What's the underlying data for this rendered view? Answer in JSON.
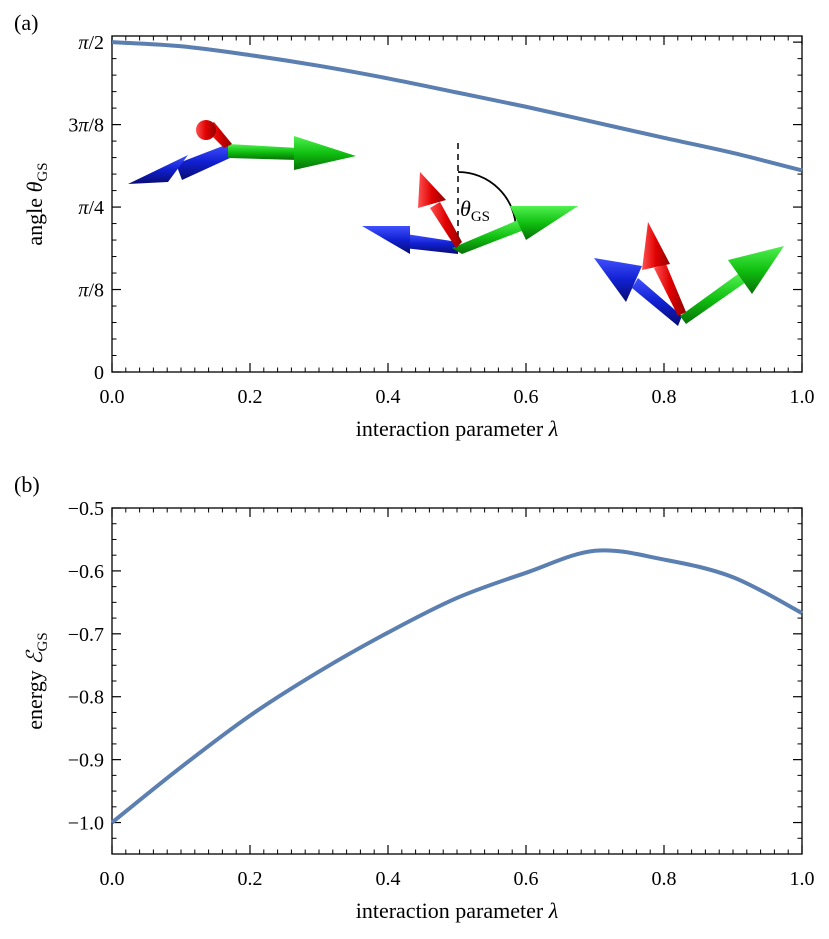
{
  "colors": {
    "curve": "#5b7fb0",
    "arrow_red": "#e01010",
    "arrow_green": "#10c010",
    "arrow_blue": "#1020d0"
  },
  "chart_data": [
    {
      "panel": "(a)",
      "type": "line",
      "xlabel": "interaction parameter λ",
      "ylabel": "angle θGS",
      "xlim": [
        0,
        1
      ],
      "ylim": [
        0,
        1.6
      ],
      "xticks": [
        0,
        0.2,
        0.4,
        0.6,
        0.8,
        1.0
      ],
      "xtick_labels": [
        "0.0",
        "0.2",
        "0.4",
        "0.6",
        "0.8",
        "1.0"
      ],
      "yticks": [
        0,
        0.3927,
        0.7854,
        1.1781,
        1.5708
      ],
      "ytick_labels": [
        "0",
        "π/8",
        "π/4",
        "3π/8",
        "π/2"
      ],
      "grid": false,
      "series": [
        {
          "x": [
            0.0,
            0.1,
            0.2,
            0.3,
            0.4,
            0.5,
            0.6,
            0.7,
            0.8,
            0.9,
            1.0
          ],
          "values": [
            1.5708,
            1.551,
            1.509,
            1.458,
            1.398,
            1.331,
            1.263,
            1.189,
            1.115,
            1.043,
            0.96
          ]
        }
      ],
      "annotations": [
        {
          "text": "θGS",
          "x": 0.53,
          "y": 0.8
        }
      ]
    },
    {
      "panel": "(b)",
      "type": "line",
      "xlabel": "interaction parameter λ",
      "ylabel": "energy ℰGS",
      "xlim": [
        0,
        1
      ],
      "ylim": [
        -1.05,
        -0.5
      ],
      "xticks": [
        0,
        0.2,
        0.4,
        0.6,
        0.8,
        1.0
      ],
      "xtick_labels": [
        "0.0",
        "0.2",
        "0.4",
        "0.6",
        "0.8",
        "1.0"
      ],
      "yticks": [
        -1.0,
        -0.9,
        -0.8,
        -0.7,
        -0.6,
        -0.5
      ],
      "ytick_labels": [
        "−1.0",
        "−0.9",
        "−0.8",
        "−0.7",
        "−0.6",
        "−0.5"
      ],
      "grid": false,
      "series": [
        {
          "x": [
            0.0,
            0.1,
            0.2,
            0.3,
            0.4,
            0.5,
            0.6,
            0.7,
            0.8,
            0.9,
            1.0
          ],
          "values": [
            -1.0,
            -0.912,
            -0.83,
            -0.76,
            -0.698,
            -0.643,
            -0.603,
            -0.568,
            -0.582,
            -0.61,
            -0.667
          ]
        }
      ]
    }
  ]
}
